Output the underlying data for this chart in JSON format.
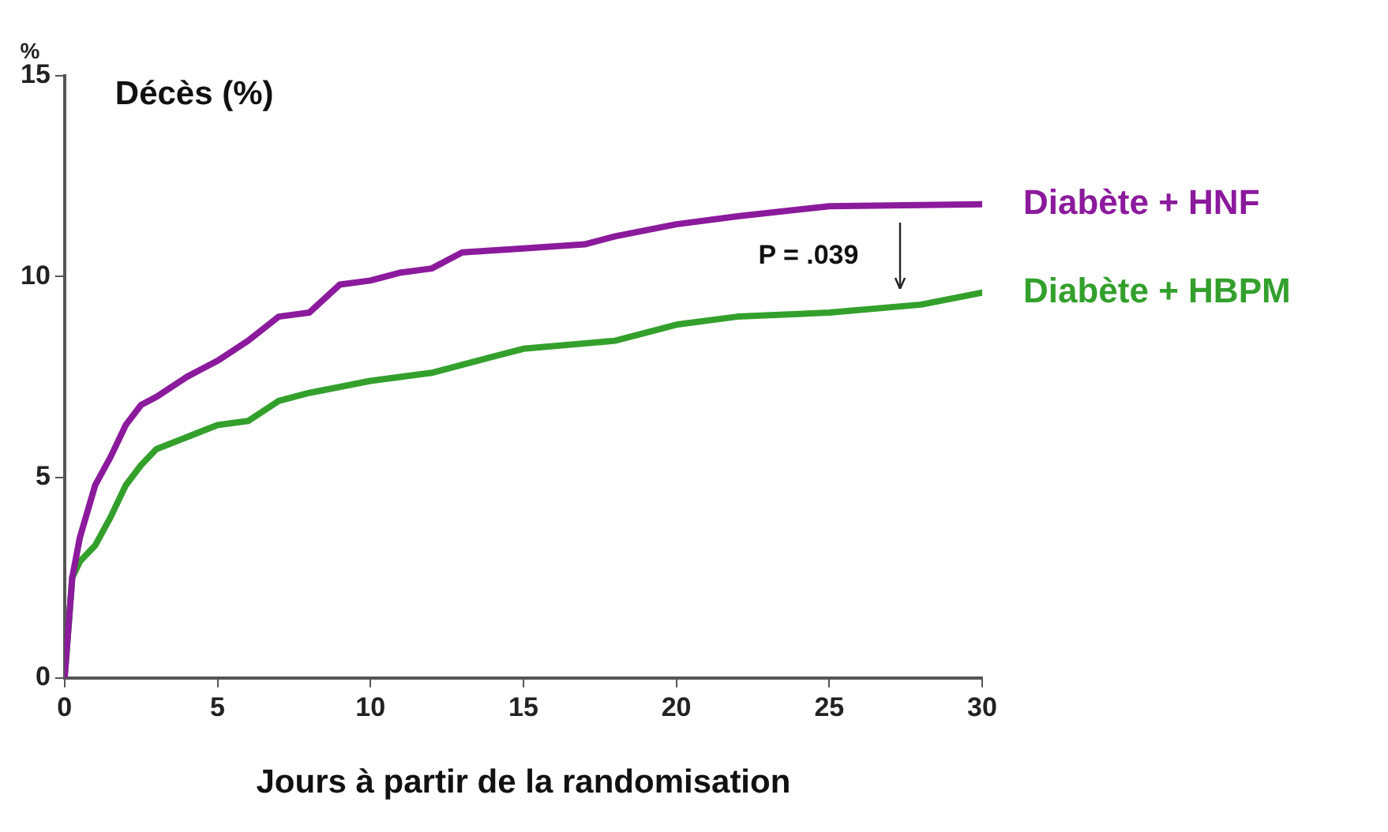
{
  "chart_data": {
    "type": "line",
    "title": "Décès (%)",
    "xlabel": "Jours à partir de la randomisation",
    "ylabel": "%",
    "xlim": [
      0,
      30
    ],
    "xticks": [
      0,
      5,
      10,
      15,
      20,
      25,
      30
    ],
    "ylim": [
      0,
      15
    ],
    "yticks": [
      0,
      5,
      10,
      15
    ],
    "grid": false,
    "legend": false,
    "marker": "none",
    "line_style": "solid",
    "annotations": [
      "P = .039"
    ],
    "series": [
      {
        "name": "Diabète + HNF",
        "color": "#8b1a9c",
        "x": [
          0,
          0.25,
          0.5,
          1,
          1.5,
          2,
          2.5,
          3,
          4,
          5,
          6,
          7,
          8,
          9,
          10,
          11,
          12,
          13,
          15,
          17,
          18,
          20,
          22,
          25,
          30
        ],
        "values": [
          0,
          2.5,
          3.5,
          4.8,
          5.5,
          6.3,
          6.8,
          7.0,
          7.5,
          7.9,
          8.4,
          9.0,
          9.1,
          9.8,
          9.9,
          10.1,
          10.2,
          10.6,
          10.7,
          10.8,
          11.0,
          11.3,
          11.5,
          11.75,
          11.8
        ]
      },
      {
        "name": "Diabète + HBPM",
        "color": "#33a02c",
        "x": [
          0,
          0.25,
          0.5,
          1,
          1.5,
          2,
          2.5,
          3,
          4,
          5,
          6,
          7,
          8,
          10,
          12,
          14,
          15,
          18,
          20,
          22,
          25,
          28,
          30
        ],
        "values": [
          0,
          2.5,
          2.9,
          3.3,
          4.0,
          4.8,
          5.3,
          5.7,
          6.0,
          6.3,
          6.4,
          6.9,
          7.1,
          7.4,
          7.6,
          8.0,
          8.2,
          8.4,
          8.8,
          9.0,
          9.1,
          9.3,
          9.6
        ]
      }
    ]
  }
}
